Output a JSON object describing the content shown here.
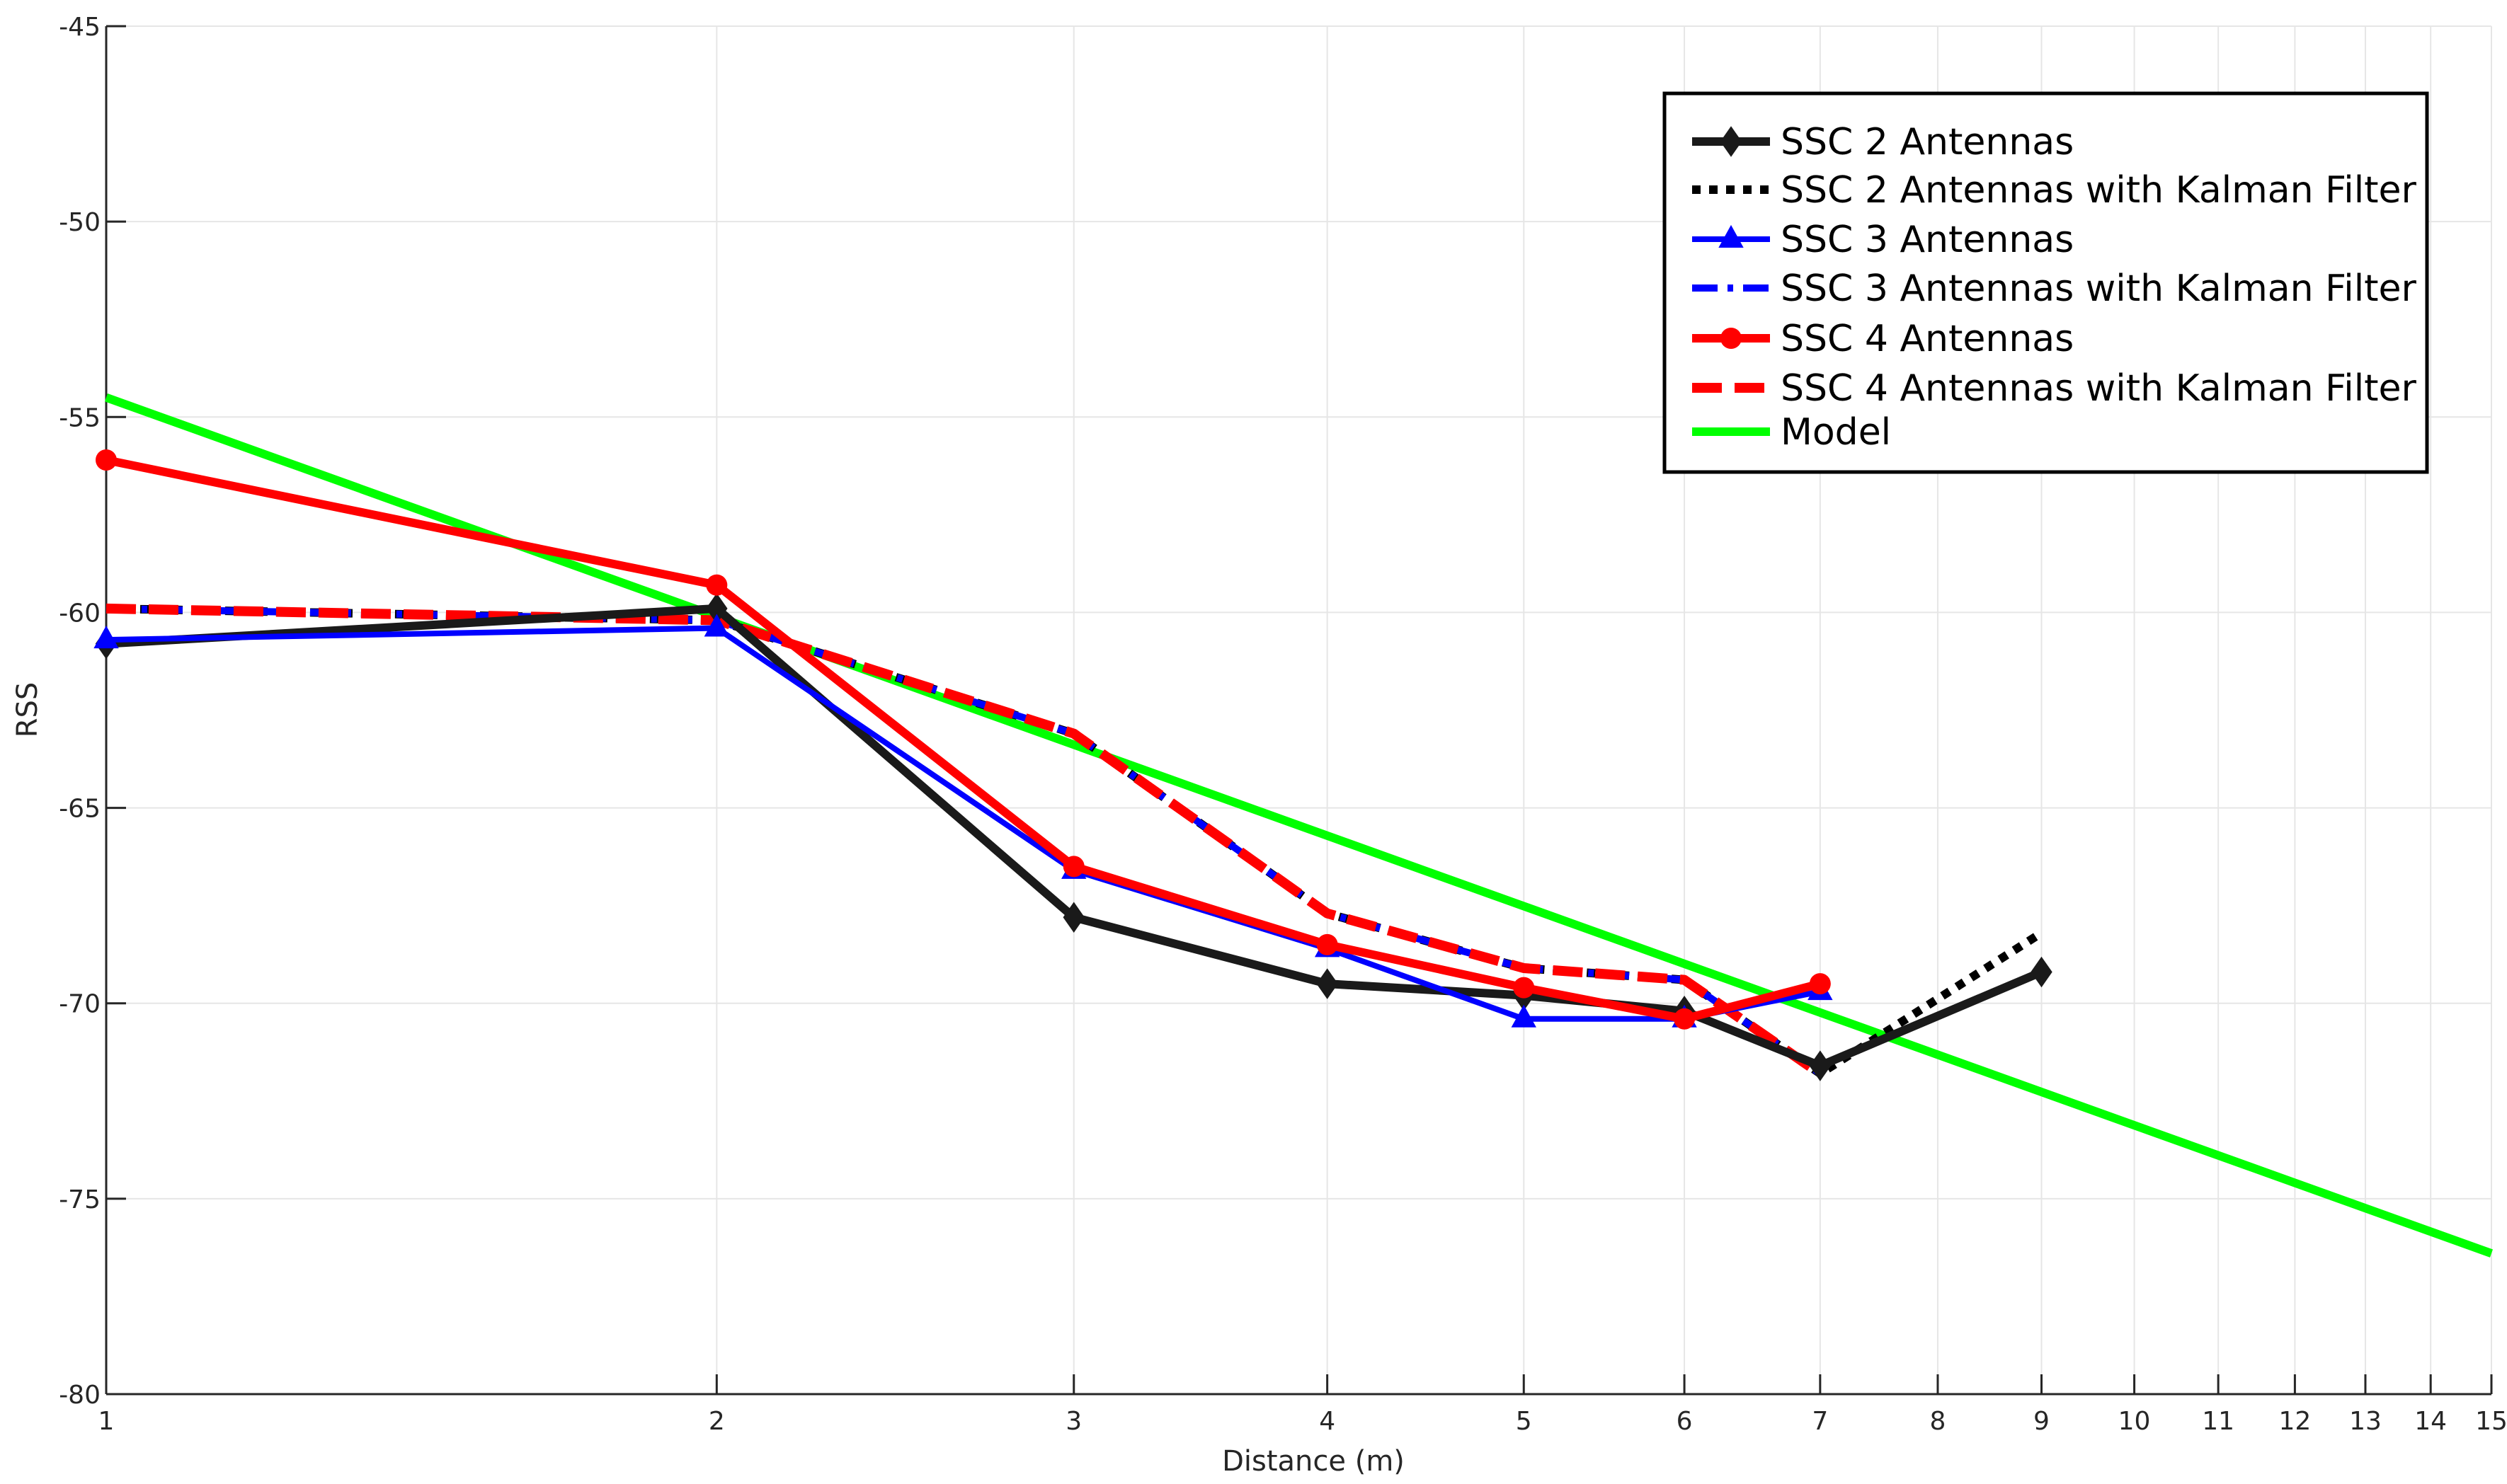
{
  "chart_data": {
    "type": "line",
    "xlabel": "Distance (m)",
    "ylabel": "RSS",
    "x_scale": "log",
    "xlim": [
      1,
      15
    ],
    "ylim": [
      -80,
      -45
    ],
    "xticks": [
      1,
      2,
      3,
      4,
      5,
      6,
      7,
      8,
      9,
      10,
      11,
      12,
      13,
      14,
      15
    ],
    "yticks": [
      -45,
      -50,
      -55,
      -60,
      -65,
      -70,
      -75,
      -80
    ],
    "grid": true,
    "legend_position": "top-right",
    "series": [
      {
        "name": "SSC 2 Antennas",
        "color": "#1a1a1a",
        "style": "solid",
        "marker": "diamond",
        "x": [
          1,
          2,
          3,
          4,
          5,
          6,
          7,
          9
        ],
        "y": [
          -60.8,
          -59.9,
          -67.8,
          -69.5,
          -69.8,
          -70.2,
          -71.6,
          -69.2
        ]
      },
      {
        "name": "SSC 2 Antennas with Kalman Filter",
        "color": "#000000",
        "style": "dotted",
        "marker": "none",
        "x": [
          1,
          2,
          3,
          4,
          5,
          6,
          7,
          9
        ],
        "y": [
          -59.9,
          -60.2,
          -63.1,
          -67.7,
          -69.1,
          -69.4,
          -71.8,
          -68.2
        ]
      },
      {
        "name": "SSC 3 Antennas",
        "color": "#0000ff",
        "style": "solid",
        "marker": "triangle",
        "x": [
          1,
          2,
          3,
          4,
          5,
          6,
          7
        ],
        "y": [
          -60.7,
          -60.4,
          -66.6,
          -68.6,
          -70.4,
          -70.4,
          -69.7
        ]
      },
      {
        "name": "SSC 3 Antennas with Kalman Filter",
        "color": "#0000ff",
        "style": "dashdot",
        "marker": "none",
        "x": [
          1,
          2,
          3,
          4,
          5,
          6,
          7
        ],
        "y": [
          -59.9,
          -60.2,
          -63.1,
          -67.7,
          -69.1,
          -69.4,
          -71.8
        ]
      },
      {
        "name": "SSC 4 Antennas",
        "color": "#ff0000",
        "style": "solid",
        "marker": "circle",
        "x": [
          1,
          2,
          3,
          4,
          5,
          6,
          7
        ],
        "y": [
          -56.1,
          -59.3,
          -66.5,
          -68.5,
          -69.6,
          -70.4,
          -69.5
        ]
      },
      {
        "name": "SSC 4 Antennas with Kalman Filter",
        "color": "#ff0000",
        "style": "dashed",
        "marker": "none",
        "x": [
          1,
          2,
          3,
          4,
          5,
          6,
          7
        ],
        "y": [
          -59.9,
          -60.2,
          -63.1,
          -67.7,
          -69.1,
          -69.4,
          -71.8
        ]
      },
      {
        "name": "Model",
        "color": "#00ff00",
        "style": "solid",
        "marker": "none",
        "x": [
          1,
          15
        ],
        "y": [
          -54.5,
          -76.4
        ]
      }
    ]
  }
}
